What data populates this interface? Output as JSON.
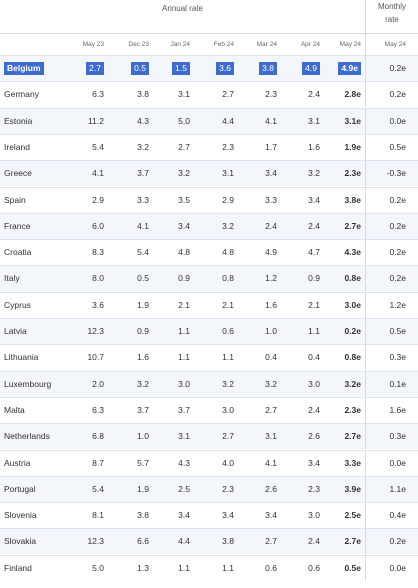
{
  "header": {
    "annual_label": "Annual rate",
    "monthly_label_line1": "Monthly",
    "monthly_label_line2": "rate"
  },
  "periods": [
    "May 23",
    "Dec 23",
    "Jan 24",
    "Feb 24",
    "Mar 24",
    "Apr 24",
    "May 24",
    "May 24"
  ],
  "rows": [
    {
      "country": "Belgium",
      "values": [
        "2.7",
        "0.5",
        "1.5",
        "3.6",
        "3.8",
        "4.9",
        "4.9e",
        "0.2e"
      ],
      "selected": true
    },
    {
      "country": "Germany",
      "values": [
        "6.3",
        "3.8",
        "3.1",
        "2.7",
        "2.3",
        "2.4",
        "2.8e",
        "0.2e"
      ]
    },
    {
      "country": "Estonia",
      "values": [
        "11.2",
        "4.3",
        "5.0",
        "4.4",
        "4.1",
        "3.1",
        "3.1e",
        "0.0e"
      ]
    },
    {
      "country": "Ireland",
      "values": [
        "5.4",
        "3.2",
        "2.7",
        "2.3",
        "1.7",
        "1.6",
        "1.9e",
        "0.5e"
      ]
    },
    {
      "country": "Greece",
      "values": [
        "4.1",
        "3.7",
        "3.2",
        "3.1",
        "3.4",
        "3.2",
        "2.3e",
        "-0.3e"
      ]
    },
    {
      "country": "Spain",
      "values": [
        "2.9",
        "3.3",
        "3.5",
        "2.9",
        "3.3",
        "3.4",
        "3.8e",
        "0.2e"
      ]
    },
    {
      "country": "France",
      "values": [
        "6.0",
        "4.1",
        "3.4",
        "3.2",
        "2.4",
        "2.4",
        "2.7e",
        "0.2e"
      ]
    },
    {
      "country": "Croatia",
      "values": [
        "8.3",
        "5.4",
        "4.8",
        "4.8",
        "4.9",
        "4.7",
        "4.3e",
        "0.2e"
      ]
    },
    {
      "country": "Italy",
      "values": [
        "8.0",
        "0.5",
        "0.9",
        "0.8",
        "1.2",
        "0.9",
        "0.8e",
        "0.2e"
      ]
    },
    {
      "country": "Cyprus",
      "values": [
        "3.6",
        "1.9",
        "2.1",
        "2.1",
        "1.6",
        "2.1",
        "3.0e",
        "1.2e"
      ]
    },
    {
      "country": "Latvia",
      "values": [
        "12.3",
        "0.9",
        "1.1",
        "0.6",
        "1.0",
        "1.1",
        "0.2e",
        "0.5e"
      ]
    },
    {
      "country": "Lithuania",
      "values": [
        "10.7",
        "1.6",
        "1.1",
        "1.1",
        "0.4",
        "0.4",
        "0.8e",
        "0.3e"
      ]
    },
    {
      "country": "Luxembourg",
      "values": [
        "2.0",
        "3.2",
        "3.0",
        "3.2",
        "3.2",
        "3.0",
        "3.2e",
        "0.1e"
      ]
    },
    {
      "country": "Malta",
      "values": [
        "6.3",
        "3.7",
        "3.7",
        "3.0",
        "2.7",
        "2.4",
        "2.3e",
        "1.6e"
      ]
    },
    {
      "country": "Netherlands",
      "values": [
        "6.8",
        "1.0",
        "3.1",
        "2.7",
        "3.1",
        "2.6",
        "2.7e",
        "0.3e"
      ]
    },
    {
      "country": "Austria",
      "values": [
        "8.7",
        "5.7",
        "4.3",
        "4.0",
        "4.1",
        "3.4",
        "3.3e",
        "0.0e"
      ]
    },
    {
      "country": "Portugal",
      "values": [
        "5.4",
        "1.9",
        "2.5",
        "2.3",
        "2.6",
        "2.3",
        "3.9e",
        "1.1e"
      ]
    },
    {
      "country": "Slovenia",
      "values": [
        "8.1",
        "3.8",
        "3.4",
        "3.4",
        "3.4",
        "3.0",
        "2.5e",
        "0.4e"
      ]
    },
    {
      "country": "Slovakia",
      "values": [
        "12.3",
        "6.6",
        "4.4",
        "3.8",
        "2.7",
        "2.4",
        "2.7e",
        "0.2e"
      ]
    },
    {
      "country": "Finland",
      "values": [
        "5.0",
        "1.3",
        "1.1",
        "1.1",
        "0.6",
        "0.6",
        "0.5e",
        "0.0e"
      ]
    }
  ]
}
